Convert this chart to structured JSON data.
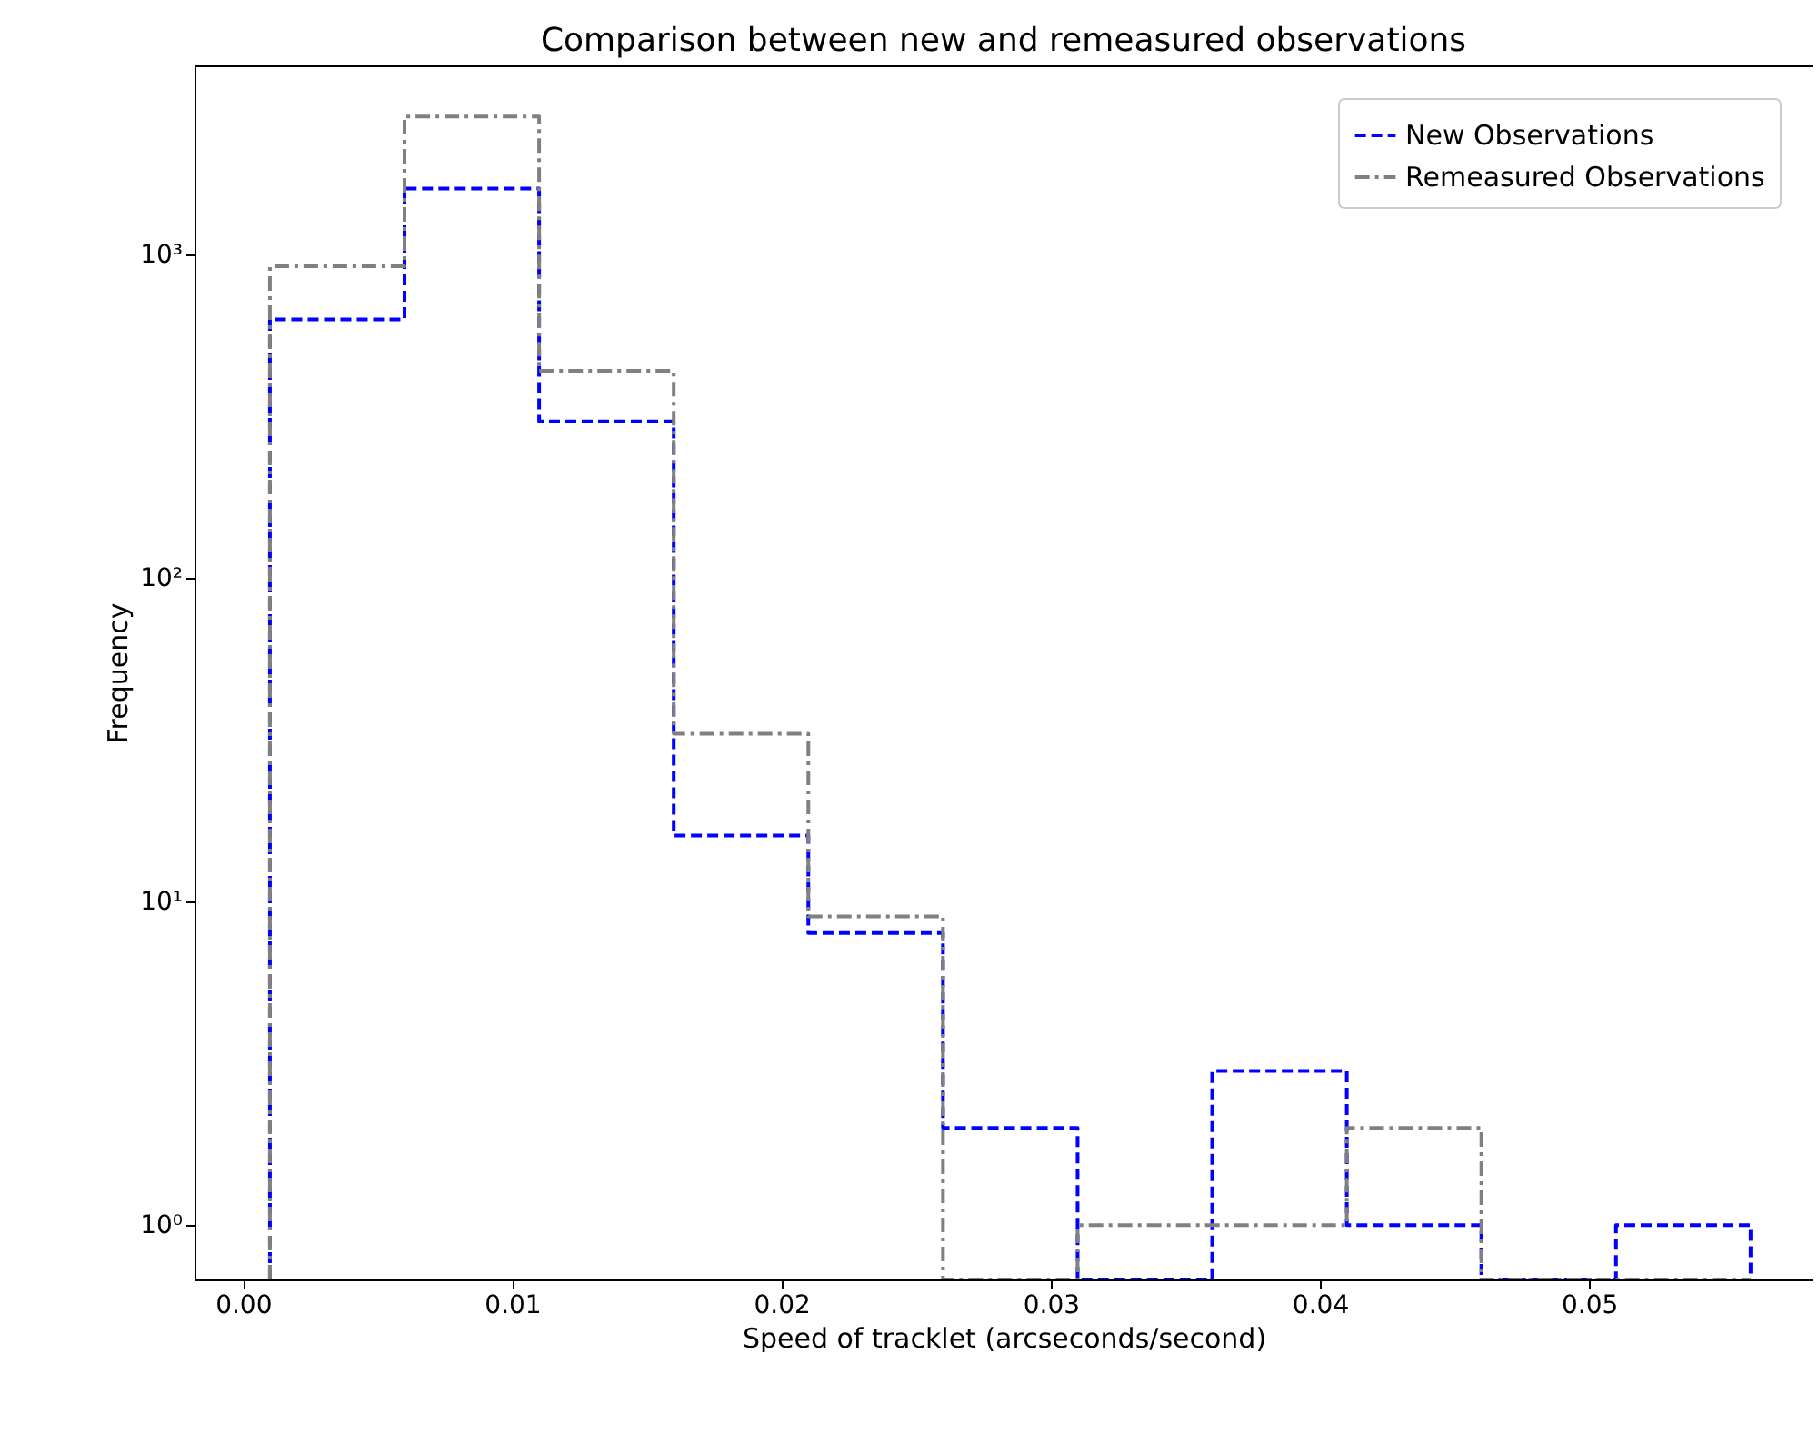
{
  "chart_data": {
    "type": "histogram",
    "title": "Comparison between new and remeasured observations",
    "xlabel": "Speed of tracklet (arcseconds/second)",
    "ylabel": "Frequency",
    "bins": [
      0.001,
      0.006,
      0.011,
      0.016,
      0.021,
      0.026,
      0.031,
      0.036,
      0.041,
      0.046,
      0.051,
      0.056
    ],
    "series": [
      {
        "name": "New Observations",
        "color": "#0000ff",
        "line_style": "dashed",
        "values": [
          630,
          1600,
          305,
          16,
          8,
          2,
          null,
          3,
          1,
          null,
          1
        ]
      },
      {
        "name": "Remeasured Observations",
        "color": "#808080",
        "line_style": "dashdot",
        "values": [
          920,
          2670,
          437,
          33,
          9,
          null,
          1,
          1,
          2,
          null,
          null
        ]
      }
    ],
    "log": "y",
    "xlim": [
      -0.0018,
      0.0583
    ],
    "ylim": [
      0.68,
      3840
    ],
    "xticks": [
      {
        "value": 0,
        "label": "0.00"
      },
      0.01,
      0.02,
      0.03,
      0.04,
      0.05
    ],
    "yticks": [
      {
        "value": 1,
        "label": "10⁰"
      },
      {
        "value": 10,
        "label": "10¹"
      },
      {
        "value": 100,
        "label": "10²"
      },
      {
        "value": 1000,
        "label": "10³"
      }
    ],
    "grid": false,
    "legend": "top right"
  }
}
